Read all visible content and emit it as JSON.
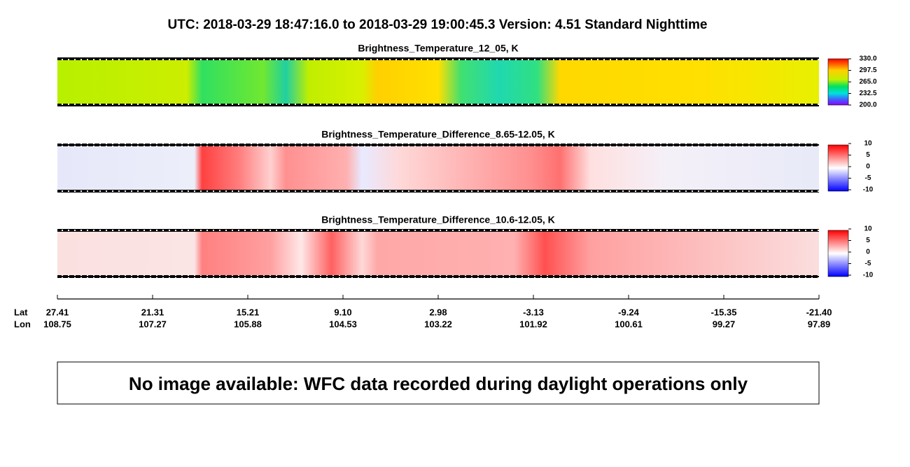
{
  "header": {
    "title": "UTC:  2018-03-29   18:47:16.0  to  2018-03-29   19:00:45.3    Version: 4.51  Standard Nighttime"
  },
  "panels": [
    {
      "title": "Brightness_Temperature_12_05, K",
      "colorbar": [
        "330.0",
        "297.5",
        "265.0",
        "232.5",
        "200.0"
      ]
    },
    {
      "title": "Brightness_Temperature_Difference_8.65-12.05, K",
      "colorbar": [
        "10",
        "5",
        "0",
        "-5",
        "-10"
      ]
    },
    {
      "title": "Brightness_Temperature_Difference_10.6-12.05, K",
      "colorbar": [
        "10",
        "5",
        "0",
        "-5",
        "-10"
      ]
    }
  ],
  "axis": {
    "lat_label": "Lat",
    "lon_label": "Lon",
    "lat": [
      "27.41",
      "21.31",
      "15.21",
      "9.10",
      "2.98",
      "-3.13",
      "-9.24",
      "-15.35",
      "-21.40"
    ],
    "lon": [
      "108.75",
      "107.27",
      "105.88",
      "104.53",
      "103.22",
      "101.92",
      "100.61",
      "99.27",
      "97.89"
    ]
  },
  "message": "No image available: WFC data recorded during daylight operations only"
}
